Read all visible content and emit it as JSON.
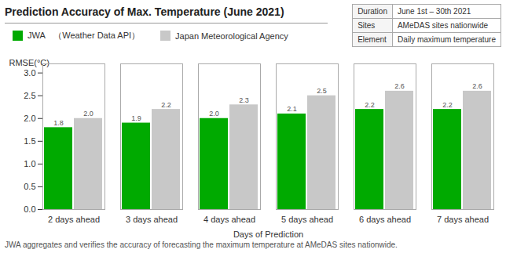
{
  "chart_data": {
    "type": "bar",
    "title": "Prediction Accuracy of Max. Temperature (June 2021)",
    "categories": [
      "2 days ahead",
      "3 days ahead",
      "4 days ahead",
      "5 days ahead",
      "6 days ahead",
      "7 days ahead"
    ],
    "series": [
      {
        "name": "JWA　（Weather Data API）",
        "color": "#00aa00",
        "values": [
          1.8,
          1.9,
          2.0,
          2.1,
          2.2,
          2.2
        ],
        "value_labels": [
          "1.8",
          "1.9",
          "2.0",
          "2.1",
          "2.2",
          "2.2"
        ]
      },
      {
        "name": "Japan Meteorological Agency",
        "color": "#c8c8c8",
        "values": [
          2.0,
          2.2,
          2.3,
          2.5,
          2.6,
          2.6
        ],
        "value_labels": [
          "2.0",
          "2.2",
          "2.3",
          "2.5",
          "2.6",
          "2.6"
        ]
      }
    ],
    "xlabel": "Days of Prediction",
    "ylabel": "RMSE(°C)",
    "ylim": [
      0,
      3.2
    ],
    "yticks": [
      {
        "value": 0,
        "label": "0.0"
      },
      0.5,
      {
        "value": 1,
        "label": "1.0"
      },
      1.5,
      {
        "value": 2,
        "label": "2.0"
      },
      2.5,
      {
        "value": 3,
        "label": "3.0"
      }
    ],
    "data_labels": true,
    "grid": false,
    "legend": "top",
    "footnote": "JWA aggregates and verifies the accuracy of forecasting the maximum temperature at AMeDAS sites nationwide.",
    "table": [
      [
        "Duration",
        "June 1st – 30th 2021"
      ],
      [
        "Sites",
        "AMeDAS sites nationwide"
      ],
      [
        "Element",
        "Daily maximum temperature"
      ]
    ]
  }
}
